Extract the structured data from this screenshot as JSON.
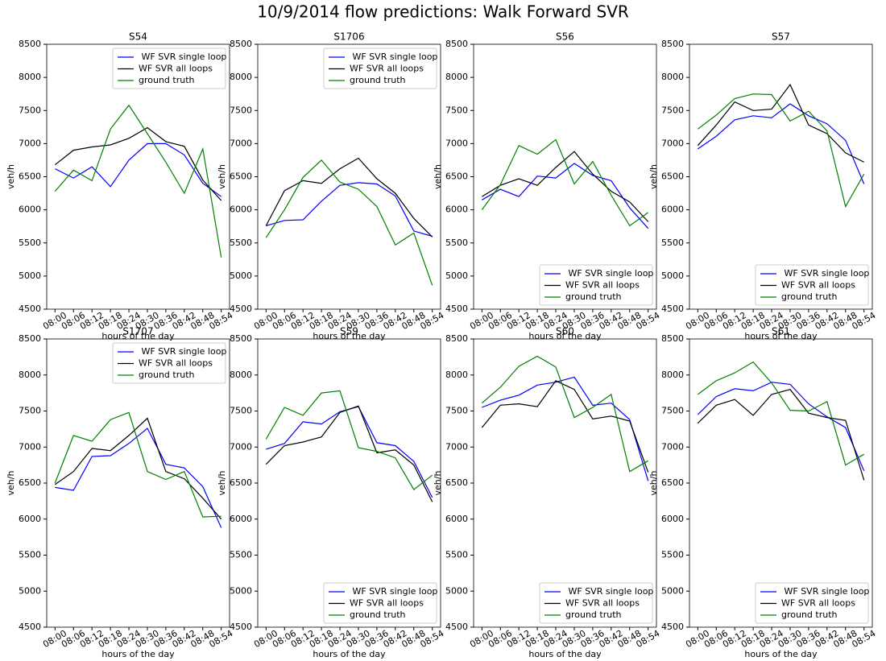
{
  "title": "10/9/2014 flow predictions: Walk Forward SVR",
  "chart_data": [
    {
      "type": "line",
      "title": "S54",
      "xlabel": "hours of the day",
      "ylabel": "veh/h",
      "legend": "upper right",
      "categories": [
        "08:00",
        "08:06",
        "08:12",
        "08:18",
        "08:24",
        "08:30",
        "08:36",
        "08:42",
        "08:48",
        "08:54"
      ],
      "ylim": [
        4500,
        8500
      ],
      "yticks": [
        4500,
        5000,
        5500,
        6000,
        6500,
        7000,
        7500,
        8000,
        8500
      ],
      "series": [
        {
          "name": " WF SVR single loop",
          "color": "#0000ff",
          "values": [
            6620,
            6480,
            6650,
            6350,
            6750,
            7000,
            7000,
            6830,
            6400,
            6200
          ]
        },
        {
          "name": "WF SVR all loops",
          "color": "#000000",
          "values": [
            6680,
            6900,
            6950,
            6980,
            7080,
            7240,
            7030,
            6960,
            6450,
            6140
          ]
        },
        {
          "name": "ground truth",
          "color": "#008000",
          "values": [
            6280,
            6600,
            6440,
            7220,
            7580,
            7150,
            6720,
            6250,
            6920,
            5280
          ]
        }
      ]
    },
    {
      "type": "line",
      "title": "S1706",
      "xlabel": "hours of the day",
      "ylabel": "veh/h",
      "legend": "upper right",
      "categories": [
        "08:00",
        "08:06",
        "08:12",
        "08:18",
        "08:24",
        "08:30",
        "08:36",
        "08:42",
        "08:48",
        "08:54"
      ],
      "ylim": [
        4500,
        8500
      ],
      "yticks": [
        4500,
        5000,
        5500,
        6000,
        6500,
        7000,
        7500,
        8000,
        8500
      ],
      "series": [
        {
          "name": " WF SVR single loop",
          "color": "#0000ff",
          "values": [
            5760,
            5840,
            5850,
            6130,
            6370,
            6410,
            6390,
            6210,
            5680,
            5600
          ]
        },
        {
          "name": "WF SVR all loops",
          "color": "#000000",
          "values": [
            5760,
            6290,
            6440,
            6400,
            6620,
            6780,
            6470,
            6250,
            5870,
            5590
          ]
        },
        {
          "name": "ground truth",
          "color": "#008000",
          "values": [
            5580,
            6000,
            6490,
            6750,
            6420,
            6310,
            6050,
            5470,
            5650,
            4860
          ]
        }
      ]
    },
    {
      "type": "line",
      "title": "S56",
      "xlabel": "hours of the day",
      "ylabel": "veh/h",
      "legend": "lower right",
      "categories": [
        "08:00",
        "08:06",
        "08:12",
        "08:18",
        "08:24",
        "08:30",
        "08:36",
        "08:42",
        "08:48",
        "08:54"
      ],
      "ylim": [
        4500,
        8500
      ],
      "yticks": [
        4500,
        5000,
        5500,
        6000,
        6500,
        7000,
        7500,
        8000,
        8500
      ],
      "series": [
        {
          "name": " WF SVR single loop",
          "color": "#0000ff",
          "values": [
            6150,
            6310,
            6200,
            6510,
            6480,
            6700,
            6520,
            6440,
            6030,
            5720
          ]
        },
        {
          "name": "WF SVR all loops",
          "color": "#000000",
          "values": [
            6200,
            6370,
            6470,
            6370,
            6640,
            6880,
            6540,
            6280,
            6120,
            5820
          ]
        },
        {
          "name": "ground truth",
          "color": "#008000",
          "values": [
            6000,
            6380,
            6970,
            6840,
            7060,
            6390,
            6730,
            6220,
            5760,
            5960
          ]
        }
      ]
    },
    {
      "type": "line",
      "title": "S57",
      "xlabel": "hours of the day",
      "ylabel": "veh/h",
      "legend": "lower right",
      "categories": [
        "08:00",
        "08:06",
        "08:12",
        "08:18",
        "08:24",
        "08:30",
        "08:36",
        "08:42",
        "08:48",
        "08:54"
      ],
      "ylim": [
        4500,
        8500
      ],
      "yticks": [
        4500,
        5000,
        5500,
        6000,
        6500,
        7000,
        7500,
        8000,
        8500
      ],
      "series": [
        {
          "name": " WF SVR single loop",
          "color": "#0000ff",
          "values": [
            6920,
            7110,
            7360,
            7420,
            7390,
            7600,
            7420,
            7300,
            7050,
            6390
          ]
        },
        {
          "name": "WF SVR all loops",
          "color": "#000000",
          "values": [
            6970,
            7280,
            7630,
            7500,
            7520,
            7890,
            7280,
            7150,
            6860,
            6720
          ]
        },
        {
          "name": "ground truth",
          "color": "#008000",
          "values": [
            7220,
            7430,
            7680,
            7750,
            7740,
            7340,
            7490,
            7190,
            6050,
            6540
          ]
        }
      ]
    },
    {
      "type": "line",
      "title": "S1707",
      "xlabel": "hours of the day",
      "ylabel": "veh/h",
      "legend": "upper right",
      "categories": [
        "08:00",
        "08:06",
        "08:12",
        "08:18",
        "08:24",
        "08:30",
        "08:36",
        "08:42",
        "08:48",
        "08:54"
      ],
      "ylim": [
        4500,
        8500
      ],
      "yticks": [
        4500,
        5000,
        5500,
        6000,
        6500,
        7000,
        7500,
        8000,
        8500
      ],
      "series": [
        {
          "name": " WF SVR single loop",
          "color": "#0000ff",
          "values": [
            6440,
            6400,
            6870,
            6880,
            7050,
            7260,
            6760,
            6710,
            6450,
            5880
          ]
        },
        {
          "name": "WF SVR all loops",
          "color": "#000000",
          "values": [
            6480,
            6660,
            6980,
            6950,
            7160,
            7400,
            6660,
            6560,
            6290,
            6000
          ]
        },
        {
          "name": "ground truth",
          "color": "#008000",
          "values": [
            6500,
            7160,
            7080,
            7380,
            7480,
            6660,
            6550,
            6660,
            6030,
            6040
          ]
        }
      ]
    },
    {
      "type": "line",
      "title": "S59",
      "xlabel": "hours of the day",
      "ylabel": "veh/h",
      "legend": "lower right",
      "categories": [
        "08:00",
        "08:06",
        "08:12",
        "08:18",
        "08:24",
        "08:30",
        "08:36",
        "08:42",
        "08:48",
        "08:54"
      ],
      "ylim": [
        4500,
        8500
      ],
      "yticks": [
        4500,
        5000,
        5500,
        6000,
        6500,
        7000,
        7500,
        8000,
        8500
      ],
      "series": [
        {
          "name": " WF SVR single loop",
          "color": "#0000ff",
          "values": [
            6970,
            7050,
            7350,
            7320,
            7490,
            7560,
            7060,
            7020,
            6800,
            6300
          ]
        },
        {
          "name": "WF SVR all loops",
          "color": "#000000",
          "values": [
            6760,
            7020,
            7070,
            7140,
            7480,
            7570,
            6920,
            6960,
            6750,
            6240
          ]
        },
        {
          "name": "ground truth",
          "color": "#008000",
          "values": [
            7110,
            7550,
            7440,
            7750,
            7780,
            6990,
            6940,
            6850,
            6410,
            6610
          ]
        }
      ]
    },
    {
      "type": "line",
      "title": "S60",
      "xlabel": "hours of the day",
      "ylabel": "veh/h",
      "legend": "lower right",
      "categories": [
        "08:00",
        "08:06",
        "08:12",
        "08:18",
        "08:24",
        "08:30",
        "08:36",
        "08:42",
        "08:48",
        "08:54"
      ],
      "ylim": [
        4500,
        8500
      ],
      "yticks": [
        4500,
        5000,
        5500,
        6000,
        6500,
        7000,
        7500,
        8000,
        8500
      ],
      "series": [
        {
          "name": " WF SVR single loop",
          "color": "#0000ff",
          "values": [
            7550,
            7650,
            7720,
            7860,
            7900,
            7970,
            7580,
            7610,
            7380,
            6530
          ]
        },
        {
          "name": "WF SVR all loops",
          "color": "#000000",
          "values": [
            7270,
            7580,
            7600,
            7560,
            7920,
            7800,
            7390,
            7430,
            7360,
            6650
          ]
        },
        {
          "name": "ground truth",
          "color": "#008000",
          "values": [
            7610,
            7830,
            8120,
            8260,
            8110,
            7410,
            7550,
            7730,
            6660,
            6810
          ]
        }
      ]
    },
    {
      "type": "line",
      "title": "S61",
      "xlabel": "hours of the day",
      "ylabel": "veh/h",
      "legend": "lower right",
      "categories": [
        "08:00",
        "08:06",
        "08:12",
        "08:18",
        "08:24",
        "08:30",
        "08:36",
        "08:42",
        "08:48",
        "08:54"
      ],
      "ylim": [
        4500,
        8500
      ],
      "yticks": [
        4500,
        5000,
        5500,
        6000,
        6500,
        7000,
        7500,
        8000,
        8500
      ],
      "series": [
        {
          "name": " WF SVR single loop",
          "color": "#0000ff",
          "values": [
            7450,
            7700,
            7810,
            7780,
            7900,
            7870,
            7600,
            7420,
            7270,
            6670
          ]
        },
        {
          "name": "WF SVR all loops",
          "color": "#000000",
          "values": [
            7330,
            7580,
            7660,
            7440,
            7730,
            7800,
            7470,
            7410,
            7370,
            6540
          ]
        },
        {
          "name": "ground truth",
          "color": "#008000",
          "values": [
            7730,
            7920,
            8030,
            8180,
            7890,
            7510,
            7500,
            7630,
            6750,
            6900
          ]
        }
      ]
    }
  ]
}
